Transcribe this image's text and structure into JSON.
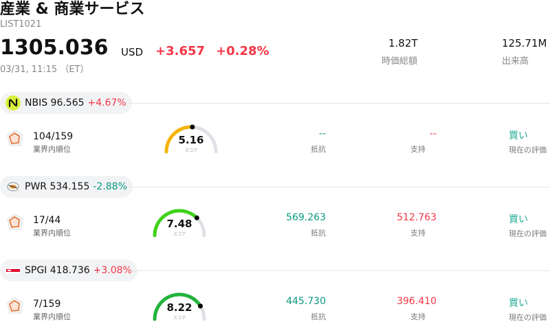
{
  "header": {
    "title": "産業 & 商業サービス",
    "code": "LIST1021",
    "price": "1305.036",
    "currency": "USD",
    "change_abs": "+3.657",
    "change_pct": "+0.28%",
    "timestamp": "03/31, 11:15 （ET）",
    "market_cap_value": "1.82T",
    "market_cap_label": "時価総額",
    "volume_value": "125.71M",
    "volume_label": "出来高"
  },
  "stocks": [
    {
      "ticker_line": "NBIS 96.565",
      "change": "+4.67%",
      "direction": "up",
      "logo_icon": "nebius-logo-icon",
      "rank": "104/159",
      "rank_label": "業界内順位",
      "score": "5.16",
      "score_value": 5.16,
      "score_label": "スコア",
      "gauge_color": "#f5b400",
      "resistance": "--",
      "resistance_label": "抵抗",
      "support": "--",
      "support_label": "支持",
      "evaluation": "買い",
      "evaluation_label": "現在の評価"
    },
    {
      "ticker_line": "PWR 534.155",
      "change": "-2.88%",
      "direction": "down",
      "logo_icon": "quanta-logo-icon",
      "rank": "17/44",
      "rank_label": "業界内順位",
      "score": "7.48",
      "score_value": 7.48,
      "score_label": "スコア",
      "gauge_color": "#3fd21b",
      "resistance": "569.263",
      "resistance_label": "抵抗",
      "support": "512.763",
      "support_label": "支持",
      "evaluation": "買い",
      "evaluation_label": "現在の評価"
    },
    {
      "ticker_line": "SPGI 418.736",
      "change": "+3.08%",
      "direction": "up",
      "logo_icon": "sp-global-logo-icon",
      "rank": "7/159",
      "rank_label": "業界内順位",
      "score": "8.22",
      "score_value": 8.22,
      "score_label": "スコア",
      "gauge_color": "#22b43c",
      "resistance": "445.730",
      "resistance_label": "抵抗",
      "support": "396.410",
      "support_label": "支持",
      "evaluation": "買い",
      "evaluation_label": "現在の評価"
    }
  ]
}
